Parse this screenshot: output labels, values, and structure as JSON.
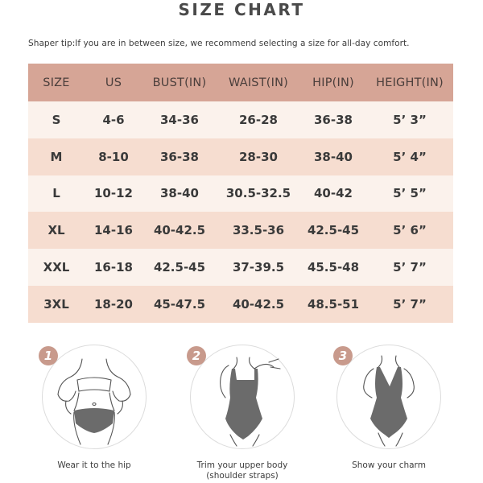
{
  "title": "SIZE CHART",
  "tip": "Shaper tip:If you are in between size, we recommend selecting a size for all-day comfort.",
  "table": {
    "headers": [
      "SIZE",
      "US",
      "BUST(IN)",
      "WAIST(IN)",
      "HIP(IN)",
      "HEIGHT(IN)"
    ],
    "rows": [
      [
        "S",
        "4-6",
        "34-36",
        "26-28",
        "36-38",
        "5’ 3”"
      ],
      [
        "M",
        "8-10",
        "36-38",
        "28-30",
        "38-40",
        "5’ 4”"
      ],
      [
        "L",
        "10-12",
        "38-40",
        "30.5-32.5",
        "40-42",
        "5’ 5”"
      ],
      [
        "XL",
        "14-16",
        "40-42.5",
        "33.5-36",
        "42.5-45",
        "5’ 6”"
      ],
      [
        "XXL",
        "16-18",
        "42.5-45",
        "37-39.5",
        "45.5-48",
        "5’ 7”"
      ],
      [
        "3XL",
        "18-20",
        "45-47.5",
        "40-42.5",
        "48.5-51",
        "5’ 7”"
      ]
    ]
  },
  "steps": [
    {
      "number": "1",
      "caption": "Wear it to the hip"
    },
    {
      "number": "2",
      "caption": "Trim your upper body",
      "caption2": "(shoulder straps)"
    },
    {
      "number": "3",
      "caption": "Show your charm"
    }
  ],
  "colors": {
    "header": "#d6a596",
    "row_light": "#fbf2ec",
    "row_dark": "#f6ddd0",
    "badge": "#c89a8c",
    "garment": "#6b6b6b"
  }
}
